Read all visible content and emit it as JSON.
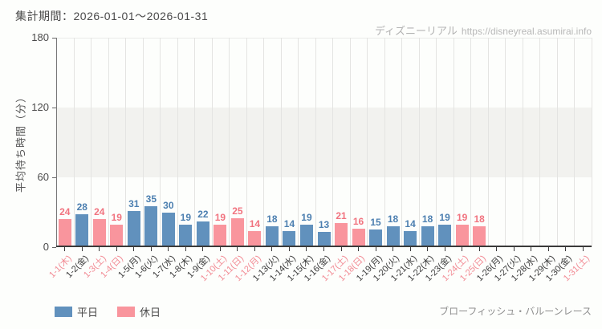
{
  "header": {
    "site_name": "ディズニーリアル",
    "site_url": "https://disneyreal.asumirai.info"
  },
  "footer": {
    "attraction_name": "ブローフィッシュ・バルーンレース"
  },
  "legend": {
    "items": [
      {
        "label": "平日",
        "color": "#6191bd"
      },
      {
        "label": "休日",
        "color": "#f9959d"
      }
    ]
  },
  "colors": {
    "weekday_bar": "#6191bd",
    "holiday_bar": "#f9959d",
    "weekday_value_label": "#4c7fb0",
    "holiday_value_label": "#f1737f",
    "weekday_tick_label": "#3b3b3b",
    "holiday_tick_label": "#f28b94",
    "band": "#f2f2ef",
    "gridline": "#e4e4e2",
    "axis": "#3a3a3a"
  },
  "chart_data": {
    "type": "bar",
    "title": "集計期間：2026-01-01～2026-01-31",
    "xlabel": "",
    "ylabel": "平均待ち時間（分）",
    "ylim": [
      0,
      180
    ],
    "yticks": [
      0,
      60,
      120,
      180
    ],
    "grid": true,
    "shaded_y_band": [
      60,
      120
    ],
    "legend_position": "bottom-left",
    "categories": [
      "1-1(木)",
      "1-2(金)",
      "1-3(土)",
      "1-4(日)",
      "1-5(月)",
      "1-6(火)",
      "1-7(水)",
      "1-8(木)",
      "1-9(金)",
      "1-10(土)",
      "1-11(日)",
      "1-12(月)",
      "1-13(火)",
      "1-14(水)",
      "1-15(木)",
      "1-16(金)",
      "1-17(土)",
      "1-18(日)",
      "1-19(月)",
      "1-20(火)",
      "1-21(水)",
      "1-22(木)",
      "1-23(金)",
      "1-24(土)",
      "1-25(日)",
      "1-26(月)",
      "1-27(火)",
      "1-28(水)",
      "1-29(木)",
      "1-30(金)",
      "1-31(土)"
    ],
    "holiday_flags": [
      true,
      false,
      true,
      true,
      false,
      false,
      false,
      false,
      false,
      true,
      true,
      true,
      false,
      false,
      false,
      false,
      true,
      true,
      false,
      false,
      false,
      false,
      false,
      true,
      true,
      false,
      false,
      false,
      false,
      false,
      true
    ],
    "series": [
      {
        "name": "平日",
        "values": [
          null,
          28,
          null,
          null,
          31,
          35,
          30,
          19,
          22,
          null,
          null,
          null,
          18,
          14,
          19,
          13,
          null,
          null,
          15,
          18,
          14,
          18,
          19,
          null,
          null,
          null,
          null,
          null,
          null,
          null,
          null
        ]
      },
      {
        "name": "休日",
        "values": [
          24,
          null,
          24,
          19,
          null,
          null,
          null,
          null,
          null,
          19,
          25,
          14,
          null,
          null,
          null,
          null,
          21,
          16,
          null,
          null,
          null,
          null,
          null,
          19,
          18,
          null,
          null,
          null,
          null,
          null,
          null
        ]
      }
    ]
  }
}
